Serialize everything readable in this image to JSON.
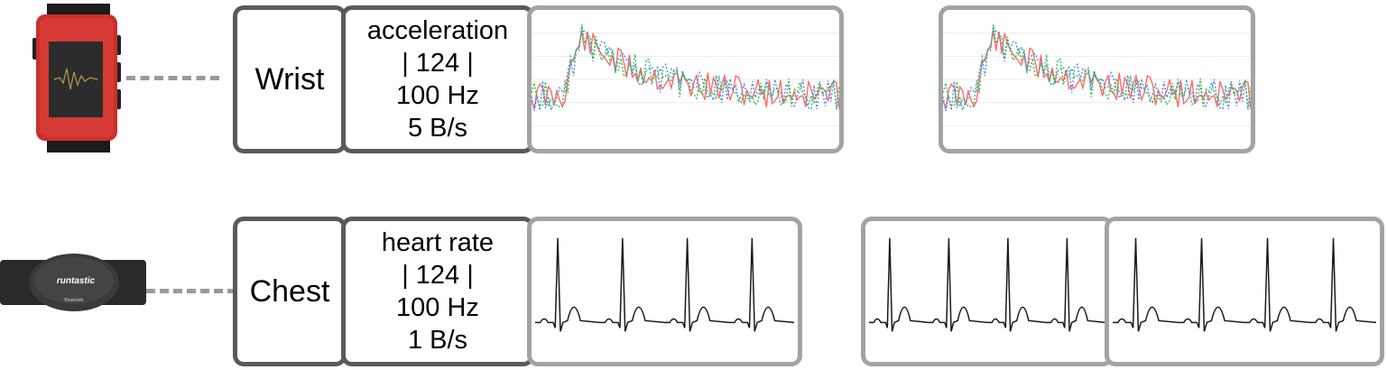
{
  "rows": [
    {
      "id": "wrist",
      "device_icon": "smartwatch-icon",
      "location": "Wrist",
      "info": [
        "acceleration",
        "| 124 |",
        "100 Hz",
        "5 B/s"
      ],
      "signal": "acceleration",
      "colors": {
        "series": [
          "#ff6b6b",
          "#4f8be8",
          "#3cb94a"
        ]
      }
    },
    {
      "id": "chest",
      "device_icon": "chest-strap-icon",
      "location": "Chest",
      "info": [
        "heart rate",
        "| 124 |",
        "100 Hz",
        "1 B/s"
      ],
      "signal": "ecg",
      "device_logo_text": "runtastic",
      "device_badge_text": "Bluetooth"
    }
  ],
  "colors": {
    "box_dark": "#5a5a5a",
    "box_light": "#a3a3a3",
    "connector": "#9a9a9a"
  }
}
